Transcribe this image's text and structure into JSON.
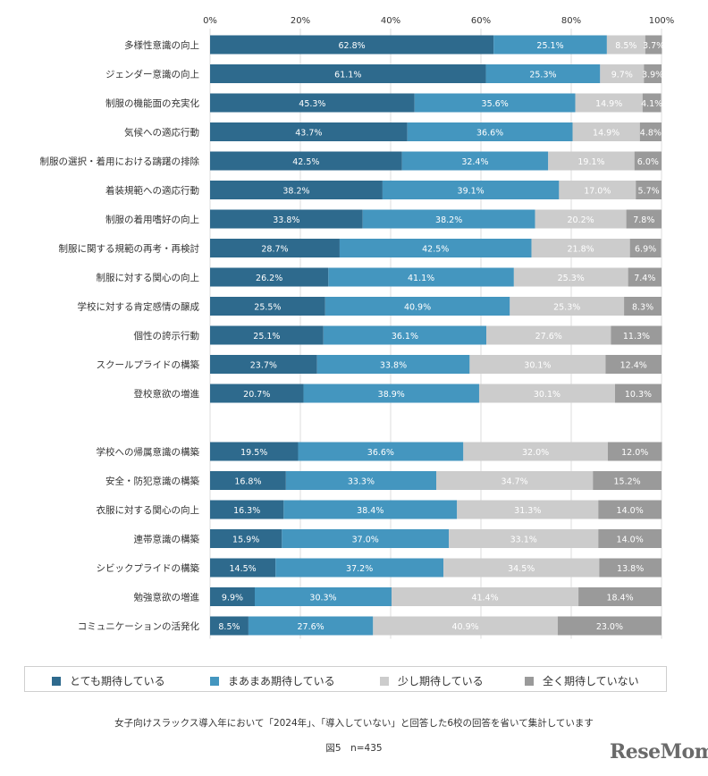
{
  "chart_data": {
    "type": "bar",
    "orientation": "horizontal",
    "stacked": true,
    "xlim": [
      0,
      100
    ],
    "ticks": [
      "0%",
      "20%",
      "40%",
      "60%",
      "80%",
      "100%"
    ],
    "grid": true,
    "legend_position": "bottom",
    "categories": [
      "多様性意識の向上",
      "ジェンダー意識の向上",
      "制服の機能面の充実化",
      "気候への適応行動",
      "制服の選択・着用における躊躇の排除",
      "着装規範への適応行動",
      "制服の着用嗜好の向上",
      "制服に関する規範の再考・再検討",
      "制服に対する関心の向上",
      "学校に対する肯定感情の醸成",
      "個性の誇示行動",
      "スクールプライドの構築",
      "登校意欲の増進",
      "学校への帰属意識の構築",
      "安全・防犯意識の構築",
      "衣服に対する関心の向上",
      "連帯意識の構築",
      "シビックプライドの構築",
      "勉強意欲の増進",
      "コミュニケーションの活発化"
    ],
    "groups": [
      13,
      7
    ],
    "series": [
      {
        "name": "とても期待している",
        "color": "#2e6a8d",
        "values": [
          62.8,
          61.1,
          45.3,
          43.7,
          42.5,
          38.2,
          33.8,
          28.7,
          26.2,
          25.5,
          25.1,
          23.7,
          20.7,
          19.5,
          16.8,
          16.3,
          15.9,
          14.5,
          9.9,
          8.5
        ],
        "labels": [
          "62.8%",
          "61.1%",
          "45.3%",
          "43.7%",
          "42.5%",
          "38.2%",
          "33.8%",
          "28.7%",
          "26.2%",
          "25.5%",
          "25.1%",
          "23.7%",
          "20.7%",
          "19.5%",
          "16.8%",
          "16.3%",
          "15.9%",
          "14.5%",
          "9.9%",
          "8.5%"
        ]
      },
      {
        "name": "まあまあ期待している",
        "color": "#4496bf",
        "values": [
          25.1,
          25.3,
          35.6,
          36.6,
          32.4,
          39.1,
          38.2,
          42.5,
          41.1,
          40.9,
          36.1,
          33.8,
          38.9,
          36.6,
          33.3,
          38.4,
          37.0,
          37.2,
          30.3,
          27.6
        ],
        "labels": [
          "25.1%",
          "25.3%",
          "35.6%",
          "36.6%",
          "32.4%",
          "39.1%",
          "38.2%",
          "42.5%",
          "41.1%",
          "40.9%",
          "36.1%",
          "33.8%",
          "38.9%",
          "36.6%",
          "33.3%",
          "38.4%",
          "37.0%",
          "37.2%",
          "30.3%",
          "27.6%"
        ]
      },
      {
        "name": "少し期待している",
        "color": "#cccccc",
        "values": [
          8.5,
          9.7,
          14.9,
          14.9,
          19.1,
          17.0,
          20.2,
          21.8,
          25.3,
          25.3,
          27.6,
          30.1,
          30.1,
          32.0,
          34.7,
          31.3,
          33.1,
          34.5,
          41.4,
          40.9
        ],
        "labels": [
          "8.5%",
          "9.7%",
          "14.9%",
          "14.9%",
          "19.1%",
          "17.0%",
          "20.2%",
          "21.8%",
          "25.3%",
          "25.3%",
          "27.6%",
          "30.1%",
          "30.1%",
          "32.0%",
          "34.7%",
          "31.3%",
          "33.1%",
          "34.5%",
          "41.4%",
          "40.9%"
        ]
      },
      {
        "name": "全く期待していない",
        "color": "#9a9a9a",
        "values": [
          3.7,
          3.9,
          4.1,
          4.8,
          6.0,
          5.7,
          7.8,
          6.9,
          7.4,
          8.3,
          11.3,
          12.4,
          10.3,
          12.0,
          15.2,
          14.0,
          14.0,
          13.8,
          18.4,
          23.0
        ],
        "labels": [
          "3.7%",
          "3.9%",
          "4.1%",
          "4.8%",
          "6.0%",
          "5.7%",
          "7.8%",
          "6.9%",
          "7.4%",
          "8.3%",
          "11.3%",
          "12.4%",
          "10.3%",
          "12.0%",
          "15.2%",
          "14.0%",
          "14.0%",
          "13.8%",
          "18.4%",
          "23.0%"
        ]
      }
    ]
  },
  "footnote": "女子向けスラックス導入年において「2024年」、「導入していない」と回答した6校の回答を省いて集計しています",
  "figure_label": "図5　n=435",
  "brand": "ReseMom"
}
